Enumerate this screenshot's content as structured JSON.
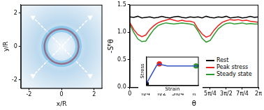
{
  "chart_data": [
    {
      "type": "scatter",
      "xlabel": "x/R",
      "ylabel": "y/R",
      "xlim": [
        -2.5,
        2.5
      ],
      "ylim": [
        -2.5,
        2.5
      ],
      "xticks": [
        -2,
        0,
        2
      ],
      "yticks": [
        -2,
        0,
        2
      ],
      "grid": false,
      "series": [
        {
          "type": "line",
          "color": "#e0201c",
          "x": [
            1.05,
            0.97,
            0.74,
            0.4,
            0,
            -0.4,
            -0.74,
            -0.97,
            -1.05,
            -0.97,
            -0.74,
            -0.4,
            0,
            0.4,
            0.74,
            0.97,
            1.05
          ],
          "values": [
            0,
            0.4,
            0.74,
            0.97,
            1.05,
            0.97,
            0.74,
            0.4,
            0,
            -0.4,
            -0.74,
            -0.97,
            -1.05,
            -0.97,
            -0.74,
            -0.4,
            0
          ]
        },
        {
          "type": "line",
          "color": "#ffffff",
          "line_style": "dashed",
          "x": [
            -1.6,
            1.6
          ],
          "values": [
            1.6,
            -1.6
          ]
        },
        {
          "type": "line",
          "color": "#ffffff",
          "line_style": "dashed",
          "x": [
            -1.6,
            1.6
          ],
          "values": [
            -1.6,
            1.6
          ]
        },
        {
          "type": "scatter",
          "color": "#ffffff",
          "marker": "triangle",
          "x": [
            -1.75,
            1.75,
            -1.75,
            1.75
          ],
          "values": [
            1.75,
            1.75,
            -1.75,
            -1.75
          ]
        }
      ]
    },
    {
      "type": "line",
      "xlabel": "θ",
      "ylabel": "-Sᴱθ",
      "xlim": [
        0,
        6.2832
      ],
      "ylim": [
        0,
        1.5
      ],
      "xticks": [
        0,
        {
          "value": 0.7854,
          "label": "π/4"
        },
        {
          "value": 1.5708,
          "label": "π/2"
        },
        {
          "value": 2.3562,
          "label": "3π/4"
        },
        {
          "value": 3.1416,
          "label": "π"
        },
        {
          "value": 3.927,
          "label": "5π/4"
        },
        {
          "value": 4.7124,
          "label": "3π/2"
        },
        {
          "value": 5.4978,
          "label": "7π/4"
        },
        {
          "value": 6.2832,
          "label": "2π"
        }
      ],
      "yticks": [
        {
          "value": 0,
          "label": "0.0"
        },
        {
          "value": 0.5,
          "label": "0.5"
        },
        {
          "value": 1,
          "label": "1.0"
        },
        {
          "value": 1.5,
          "label": "1.5"
        }
      ],
      "grid": false,
      "legend": "lower right",
      "x": [
        0,
        0.1963,
        0.3927,
        0.589,
        0.7854,
        0.9817,
        1.1781,
        1.3744,
        1.5708,
        1.7671,
        1.9635,
        2.1598,
        2.3562,
        2.5525,
        2.7489,
        2.9452,
        3.1416,
        3.3379,
        3.5343,
        3.7306,
        3.927,
        4.1233,
        4.3197,
        4.516,
        4.7124,
        4.9087,
        5.1051,
        5.3014,
        5.4978,
        5.6941,
        5.8905,
        6.0868,
        6.2832
      ],
      "series": [
        {
          "name": "Rest",
          "color": "#000000",
          "values": [
            1.28,
            1.27,
            1.29,
            1.26,
            1.27,
            1.28,
            1.26,
            1.27,
            1.29,
            1.27,
            1.26,
            1.28,
            1.29,
            1.27,
            1.26,
            1.28,
            1.27,
            1.28,
            1.26,
            1.29,
            1.27,
            1.26,
            1.28,
            1.27,
            1.29,
            1.26,
            1.27,
            1.28,
            1.26,
            1.27,
            1.29,
            1.27,
            1.28
          ]
        },
        {
          "name": "Peak stress",
          "color": "#e8231c",
          "values": [
            1.18,
            1.05,
            0.96,
            0.92,
            0.95,
            1.05,
            1.12,
            1.17,
            1.2,
            1.22,
            1.24,
            1.22,
            1.2,
            1.22,
            1.2,
            1.2,
            1.18,
            1.06,
            0.97,
            0.91,
            0.94,
            1.04,
            1.12,
            1.18,
            1.21,
            1.23,
            1.22,
            1.23,
            1.21,
            1.22,
            1.2,
            1.19,
            1.18
          ]
        },
        {
          "name": "Steady state",
          "color": "#2e9a2e",
          "values": [
            1.15,
            1.0,
            0.88,
            0.83,
            0.84,
            0.95,
            1.05,
            1.12,
            1.15,
            1.17,
            1.16,
            1.15,
            1.16,
            1.17,
            1.16,
            1.15,
            1.13,
            1.02,
            0.89,
            0.82,
            0.85,
            0.96,
            1.06,
            1.12,
            1.16,
            1.17,
            1.15,
            1.16,
            1.17,
            1.15,
            1.16,
            1.15,
            1.15
          ]
        }
      ]
    },
    {
      "type": "line",
      "xlabel": "Strain",
      "ylabel": "Stress",
      "xlim": [
        0,
        1
      ],
      "ylim": [
        0,
        1
      ],
      "tick_labels": false,
      "grid": false,
      "series": [
        {
          "type": "line",
          "color": "#3050c0",
          "x": [
            0,
            0.2,
            0.25,
            0.3,
            0.4,
            1
          ],
          "values": [
            0.05,
            0.7,
            0.75,
            0.72,
            0.68,
            0.68
          ]
        },
        {
          "type": "scatter",
          "marker": "circle",
          "color": "#000000",
          "x": [
            0
          ],
          "values": [
            0.05
          ]
        },
        {
          "type": "scatter",
          "marker": "circle",
          "color": "#e8231c",
          "x": [
            0.25
          ],
          "values": [
            0.75
          ]
        },
        {
          "type": "scatter",
          "marker": "circle",
          "color": "#2e9a2e",
          "x": [
            0.95
          ],
          "values": [
            0.68
          ]
        }
      ]
    }
  ]
}
